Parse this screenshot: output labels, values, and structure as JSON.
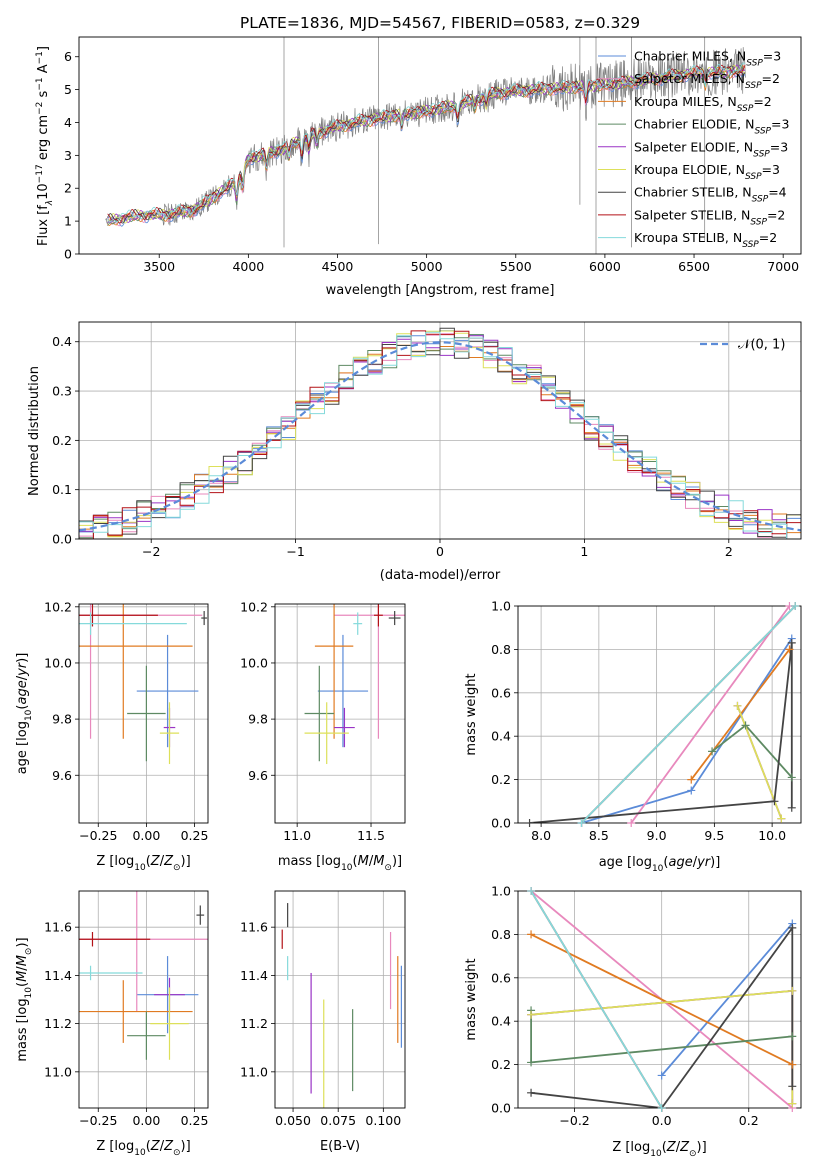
{
  "colors": {
    "Chabrier MILES": "#5b8bd8",
    "Salpeter MILES": "#e889bd",
    "Kroupa MILES": "#e07b22",
    "Chabrier ELODIE": "#5e8a63",
    "Salpeter ELODIE": "#9a34c6",
    "Kroupa ELODIE": "#dde05a",
    "Chabrier STELIB": "#444444",
    "Salpeter STELIB": "#b31217",
    "Kroupa STELIB": "#85dadb",
    "data": "#7f7f7f",
    "normal": "#5b8bd8"
  },
  "chart_data": [
    {
      "id": "spectrum",
      "type": "line",
      "title": "PLATE=1836, MJD=54567, FIBERID=0583, z=0.329",
      "xlabel": "wavelength [Angstrom, rest frame]",
      "ylabel": "Flux [f_λ 10^-17 erg cm^-2 s^-1 A^-1]",
      "xlim": [
        3050,
        7100
      ],
      "ylim": [
        0,
        6.6
      ],
      "xticks": [
        "3500",
        "4000",
        "4500",
        "5000",
        "5500",
        "6000",
        "6500",
        "7000"
      ],
      "yticks": [
        "0",
        "1",
        "2",
        "3",
        "4",
        "5",
        "6"
      ],
      "legend": [
        {
          "label": "Chabrier MILES, N",
          "sub": "SSP",
          "rest": "=3"
        },
        {
          "label": "Salpeter MILES, N",
          "sub": "SSP",
          "rest": "=2"
        },
        {
          "label": "Kroupa MILES, N",
          "sub": "SSP",
          "rest": "=2"
        },
        {
          "label": "Chabrier ELODIE, N",
          "sub": "SSP",
          "rest": "=3"
        },
        {
          "label": "Salpeter ELODIE, N",
          "sub": "SSP",
          "rest": "=3"
        },
        {
          "label": "Kroupa ELODIE, N",
          "sub": "SSP",
          "rest": "=3"
        },
        {
          "label": "Chabrier STELIB, N",
          "sub": "SSP",
          "rest": "=4"
        },
        {
          "label": "Salpeter STELIB, N",
          "sub": "SSP",
          "rest": "=2"
        },
        {
          "label": "Kroupa STELIB, N",
          "sub": "SSP",
          "rest": "=2"
        }
      ],
      "legend_position": "top-right",
      "continuum": [
        [
          3200,
          1.0
        ],
        [
          3400,
          1.18
        ],
        [
          3550,
          1.2
        ],
        [
          3700,
          1.35
        ],
        [
          3850,
          1.9
        ],
        [
          3950,
          2.3
        ],
        [
          4000,
          2.9
        ],
        [
          4200,
          3.2
        ],
        [
          4300,
          3.5
        ],
        [
          4450,
          3.8
        ],
        [
          4600,
          4.0
        ],
        [
          4800,
          4.2
        ],
        [
          4950,
          4.3
        ],
        [
          5150,
          4.5
        ],
        [
          5400,
          4.9
        ],
        [
          5600,
          5.0
        ],
        [
          5900,
          5.1
        ],
        [
          6100,
          5.2
        ],
        [
          6300,
          5.35
        ],
        [
          6500,
          5.5
        ],
        [
          6700,
          5.55
        ],
        [
          6790,
          5.6
        ]
      ],
      "absorption": [
        [
          3934,
          0.7
        ],
        [
          3969,
          0.6
        ],
        [
          4102,
          0.5
        ],
        [
          4227,
          0.4
        ],
        [
          4300,
          0.6
        ],
        [
          4340,
          0.5
        ],
        [
          4384,
          0.4
        ],
        [
          4861,
          0.4
        ],
        [
          5175,
          0.5
        ],
        [
          5270,
          0.3
        ],
        [
          5335,
          0.3
        ],
        [
          5893,
          0.5
        ],
        [
          6563,
          0.4
        ]
      ],
      "spikes": [
        [
          4200,
          0.2
        ],
        [
          4730,
          0.3
        ],
        [
          5860,
          1.5
        ],
        [
          5950,
          0.0
        ],
        [
          6150,
          0.2
        ],
        [
          6560,
          0.4
        ]
      ],
      "grid": false
    },
    {
      "id": "residuals",
      "type": "line",
      "xlabel": "(data-model)/error",
      "ylabel": "Normed distribution",
      "xlim": [
        -2.5,
        2.5
      ],
      "ylim": [
        0,
        0.44
      ],
      "xticks": [
        "−2",
        "−1",
        "0",
        "1",
        "2"
      ],
      "yticks": [
        "0.0",
        "0.1",
        "0.2",
        "0.3",
        "0.4"
      ],
      "legend": "𝒩(0, 1)",
      "legend_position": "top-right",
      "bin_width": 0.1,
      "grid": true
    },
    {
      "id": "age_vs_Z",
      "type": "scatter",
      "xlabel": "Z [log10(Z/Z⊙)]",
      "ylabel": "age [log10(age/yr)]",
      "xlim": [
        -0.35,
        0.32
      ],
      "ylim": [
        9.43,
        10.21
      ],
      "xticks": [
        "−0.25",
        "0.00",
        "0.25"
      ],
      "yticks": [
        "9.6",
        "9.8",
        "10.0",
        "10.2"
      ],
      "points": [
        {
          "model": "Chabrier MILES",
          "x": 0.11,
          "xerr": 0.16,
          "y": 9.9,
          "yerr": 0.2
        },
        {
          "model": "Salpeter MILES",
          "x": -0.29,
          "xerr": 0.58,
          "y": 10.17,
          "yerr": 0.44
        },
        {
          "model": "Kroupa MILES",
          "x": -0.12,
          "xerr": 0.36,
          "y": 10.06,
          "yerr": 0.33
        },
        {
          "model": "Chabrier ELODIE",
          "x": 0.0,
          "xerr": 0.1,
          "y": 9.82,
          "yerr": 0.17
        },
        {
          "model": "Salpeter ELODIE",
          "x": 0.12,
          "xerr": 0.03,
          "y": 9.77,
          "yerr": 0.07
        },
        {
          "model": "Kroupa ELODIE",
          "x": 0.12,
          "xerr": 0.05,
          "y": 9.75,
          "yerr": 0.11
        },
        {
          "model": "Chabrier STELIB",
          "x": 0.3,
          "xerr": 0.015,
          "y": 10.16,
          "yerr": 0.025
        },
        {
          "model": "Salpeter STELIB",
          "x": -0.28,
          "xerr": 0.34,
          "y": 10.17,
          "yerr": 0.04
        },
        {
          "model": "Kroupa STELIB",
          "x": -0.29,
          "xerr": 0.5,
          "y": 10.14,
          "yerr": 0.04
        }
      ],
      "grid": true
    },
    {
      "id": "age_vs_mass",
      "type": "scatter",
      "xlabel": "mass [log10(M/M⊙)]",
      "ylabel": "",
      "xlim": [
        10.85,
        11.73
      ],
      "ylim": [
        9.43,
        10.21
      ],
      "xticks": [
        "11.0",
        "11.5"
      ],
      "yticks": [
        "9.6",
        "9.8",
        "10.0",
        "10.2"
      ],
      "points": [
        {
          "model": "Chabrier MILES",
          "x": 11.31,
          "xerr": 0.17,
          "y": 9.9,
          "yerr": 0.2
        },
        {
          "model": "Salpeter MILES",
          "x": 11.55,
          "xerr": 0.3,
          "y": 10.17,
          "yerr": 0.44
        },
        {
          "model": "Kroupa MILES",
          "x": 11.25,
          "xerr": 0.13,
          "y": 10.06,
          "yerr": 0.33
        },
        {
          "model": "Chabrier ELODIE",
          "x": 11.15,
          "xerr": 0.1,
          "y": 9.82,
          "yerr": 0.17
        },
        {
          "model": "Salpeter ELODIE",
          "x": 11.32,
          "xerr": 0.07,
          "y": 9.77,
          "yerr": 0.07
        },
        {
          "model": "Kroupa ELODIE",
          "x": 11.2,
          "xerr": 0.15,
          "y": 9.75,
          "yerr": 0.11
        },
        {
          "model": "Chabrier STELIB",
          "x": 11.66,
          "xerr": 0.04,
          "y": 10.16,
          "yerr": 0.025
        },
        {
          "model": "Salpeter STELIB",
          "x": 11.55,
          "xerr": 0.03,
          "y": 10.17,
          "yerr": 0.04
        },
        {
          "model": "Kroupa STELIB",
          "x": 11.41,
          "xerr": 0.03,
          "y": 10.14,
          "yerr": 0.04
        }
      ],
      "grid": true
    },
    {
      "id": "weight_vs_age",
      "type": "line",
      "xlabel": "age [log10(age/yr)]",
      "ylabel": "mass weight",
      "xlim": [
        7.8,
        10.25
      ],
      "ylim": [
        0,
        1
      ],
      "xticks": [
        "8.0",
        "8.5",
        "9.0",
        "9.5",
        "10.0"
      ],
      "yticks": [
        "0.0",
        "0.2",
        "0.4",
        "0.6",
        "0.8",
        "1.0"
      ],
      "series": [
        {
          "model": "Chabrier MILES",
          "x": [
            8.35,
            9.3,
            10.17
          ],
          "y": [
            0.0,
            0.15,
            0.85
          ]
        },
        {
          "model": "Salpeter MILES",
          "x": [
            8.78,
            10.15
          ],
          "y": [
            0.0,
            1.0
          ]
        },
        {
          "model": "Kroupa MILES",
          "x": [
            9.3,
            10.15
          ],
          "y": [
            0.2,
            0.8
          ]
        },
        {
          "model": "Chabrier ELODIE",
          "x": [
            9.48,
            9.77,
            10.17
          ],
          "y": [
            0.33,
            0.45,
            0.21
          ]
        },
        {
          "model": "Salpeter ELODIE",
          "x": [
            9.7,
            10.08
          ],
          "y": [
            0.54,
            0.02
          ]
        },
        {
          "model": "Kroupa ELODIE",
          "x": [
            9.7,
            10.08
          ],
          "y": [
            0.54,
            0.02
          ]
        },
        {
          "model": "Chabrier STELIB",
          "x": [
            7.9,
            10.02,
            10.17,
            10.17
          ],
          "y": [
            0.0,
            0.1,
            0.83,
            0.07
          ]
        },
        {
          "model": "Salpeter STELIB",
          "x": [
            8.35,
            10.2
          ],
          "y": [
            0.0,
            1.0
          ]
        },
        {
          "model": "Kroupa STELIB",
          "x": [
            8.35,
            10.2
          ],
          "y": [
            0.0,
            1.0
          ]
        }
      ],
      "grid": true
    },
    {
      "id": "mass_vs_Z",
      "type": "scatter",
      "xlabel": "Z [log10(Z/Z⊙)]",
      "ylabel": "mass [log10(M/M⊙)]",
      "xlim": [
        -0.35,
        0.32
      ],
      "ylim": [
        10.85,
        11.75
      ],
      "xticks": [
        "−0.25",
        "0.00",
        "0.25"
      ],
      "yticks": [
        "11.0",
        "11.2",
        "11.4",
        "11.6"
      ],
      "points": [
        {
          "model": "Chabrier MILES",
          "x": 0.11,
          "xerr": 0.16,
          "y": 11.32,
          "yerr": 0.16
        },
        {
          "model": "Salpeter MILES",
          "x": -0.05,
          "xerr": 0.5,
          "y": 11.55,
          "yerr": 0.3
        },
        {
          "model": "Kroupa MILES",
          "x": -0.12,
          "xerr": 0.36,
          "y": 11.25,
          "yerr": 0.13
        },
        {
          "model": "Chabrier ELODIE",
          "x": 0.0,
          "xerr": 0.1,
          "y": 11.15,
          "yerr": 0.1
        },
        {
          "model": "Salpeter ELODIE",
          "x": 0.12,
          "xerr": 0.08,
          "y": 11.32,
          "yerr": 0.07
        },
        {
          "model": "Kroupa ELODIE",
          "x": 0.12,
          "xerr": 0.1,
          "y": 11.2,
          "yerr": 0.15
        },
        {
          "model": "Chabrier STELIB",
          "x": 0.28,
          "xerr": 0.02,
          "y": 11.65,
          "yerr": 0.04
        },
        {
          "model": "Salpeter STELIB",
          "x": -0.28,
          "xerr": 0.3,
          "y": 11.55,
          "yerr": 0.03
        },
        {
          "model": "Kroupa STELIB",
          "x": -0.29,
          "xerr": 0.27,
          "y": 11.41,
          "yerr": 0.03
        }
      ],
      "grid": true
    },
    {
      "id": "mass_vs_EBV",
      "type": "scatter",
      "xlabel": "E(B-V)",
      "ylabel": "",
      "xlim": [
        0.04,
        0.112
      ],
      "ylim": [
        10.85,
        11.75
      ],
      "xticks": [
        "0.050",
        "0.075",
        "0.100"
      ],
      "yticks": [
        "11.0",
        "11.2",
        "11.4",
        "11.6"
      ],
      "points": [
        {
          "model": "Chabrier MILES",
          "x": 0.11,
          "xerr": 0,
          "y": 11.27,
          "yerr": 0.17
        },
        {
          "model": "Salpeter MILES",
          "x": 0.104,
          "xerr": 0,
          "y": 11.42,
          "yerr": 0.16
        },
        {
          "model": "Kroupa MILES",
          "x": 0.108,
          "xerr": 0,
          "y": 11.3,
          "yerr": 0.18
        },
        {
          "model": "Chabrier ELODIE",
          "x": 0.083,
          "xerr": 0,
          "y": 11.09,
          "yerr": 0.17
        },
        {
          "model": "Salpeter ELODIE",
          "x": 0.06,
          "xerr": 0,
          "y": 11.16,
          "yerr": 0.25
        },
        {
          "model": "Kroupa ELODIE",
          "x": 0.067,
          "xerr": 0,
          "y": 11.07,
          "yerr": 0.23
        },
        {
          "model": "Chabrier STELIB",
          "x": 0.047,
          "xerr": 0,
          "y": 11.65,
          "yerr": 0.05
        },
        {
          "model": "Salpeter STELIB",
          "x": 0.044,
          "xerr": 0,
          "y": 11.55,
          "yerr": 0.04
        },
        {
          "model": "Kroupa STELIB",
          "x": 0.047,
          "xerr": 0,
          "y": 11.43,
          "yerr": 0.05
        }
      ],
      "grid": true
    },
    {
      "id": "weight_vs_Z",
      "type": "line",
      "xlabel": "Z [log10(Z/Z⊙)]",
      "ylabel": "mass weight",
      "xlim": [
        -0.33,
        0.32
      ],
      "ylim": [
        0,
        1
      ],
      "xticks": [
        "−0.2",
        "0.0",
        "0.2"
      ],
      "yticks": [
        "0.0",
        "0.2",
        "0.4",
        "0.6",
        "0.8",
        "1.0"
      ],
      "series": [
        {
          "model": "Chabrier MILES",
          "x": [
            0.0,
            0.3
          ],
          "y": [
            0.15,
            0.85
          ]
        },
        {
          "model": "Salpeter MILES",
          "x": [
            -0.3,
            0.3
          ],
          "y": [
            1.0,
            0.0
          ]
        },
        {
          "model": "Kroupa MILES",
          "x": [
            -0.3,
            0.3
          ],
          "y": [
            0.8,
            0.2
          ]
        },
        {
          "model": "Chabrier ELODIE",
          "x": [
            -0.3,
            -0.3,
            0.3
          ],
          "y": [
            0.45,
            0.21,
            0.33
          ]
        },
        {
          "model": "Salpeter ELODIE",
          "x": [
            -0.3,
            0.3,
            0.3
          ],
          "y": [
            0.43,
            0.54,
            0.02
          ]
        },
        {
          "model": "Kroupa ELODIE",
          "x": [
            -0.3,
            0.3,
            0.3
          ],
          "y": [
            0.43,
            0.54,
            0.02
          ]
        },
        {
          "model": "Chabrier STELIB",
          "x": [
            -0.3,
            0.0,
            0.3,
            0.3
          ],
          "y": [
            0.07,
            0.0,
            0.83,
            0.1
          ]
        },
        {
          "model": "Salpeter STELIB",
          "x": [
            -0.3,
            0.0
          ],
          "y": [
            1.0,
            0.0
          ]
        },
        {
          "model": "Kroupa STELIB",
          "x": [
            -0.3,
            0.0
          ],
          "y": [
            1.0,
            0.0
          ]
        }
      ],
      "grid": true
    }
  ]
}
